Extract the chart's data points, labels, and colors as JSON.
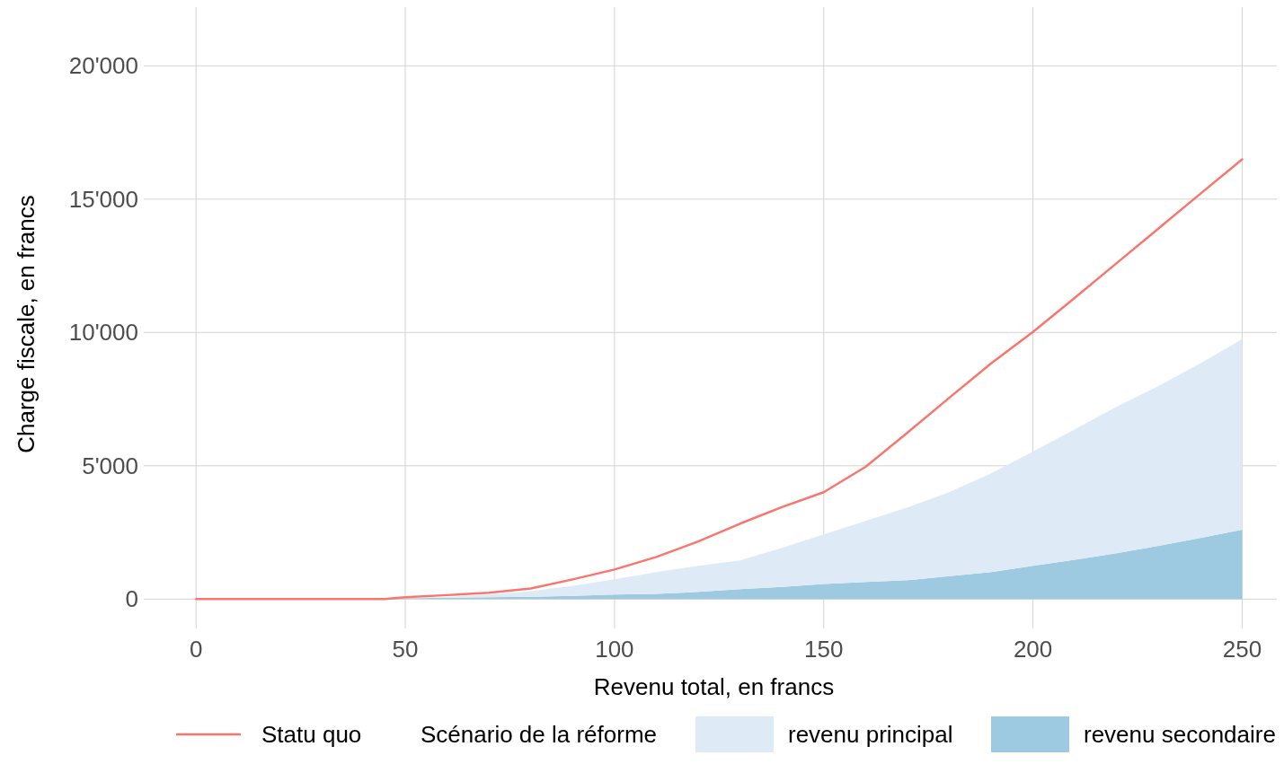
{
  "chart_data": {
    "type": "area",
    "xlabel": "Revenu total, en francs",
    "ylabel": "Charge fiscale, en francs",
    "legend_title": "Scénario de la réforme",
    "stacked": true,
    "grid": true,
    "legend": "bottom",
    "x": [
      0,
      45,
      50,
      60,
      70,
      80,
      90,
      100,
      110,
      120,
      130,
      140,
      150,
      160,
      170,
      180,
      190,
      200,
      210,
      220,
      230,
      240,
      250
    ],
    "series": [
      {
        "name": "Statu quo",
        "type": "line",
        "color": "#f8766d",
        "values": [
          0,
          0,
          70,
          150,
          240,
          400,
          740,
          1110,
          1580,
          2160,
          2830,
          3450,
          4010,
          4960,
          6240,
          7550,
          8840,
          10020,
          11300,
          12600,
          13900,
          15200,
          16490
        ]
      },
      {
        "name": "revenu secondaire",
        "type": "area",
        "color": "#9ecae1",
        "values": [
          0,
          0,
          30,
          50,
          70,
          90,
          120,
          170,
          200,
          270,
          370,
          460,
          570,
          640,
          710,
          860,
          1010,
          1250,
          1480,
          1720,
          2000,
          2290,
          2600
        ]
      },
      {
        "name": "revenu principal",
        "type": "area",
        "color": "#deebf7",
        "values": [
          0,
          0,
          0,
          30,
          100,
          210,
          380,
          570,
          810,
          980,
          1080,
          1460,
          1860,
          2290,
          2730,
          3150,
          3710,
          4280,
          4890,
          5500,
          5990,
          6550,
          7150
        ]
      }
    ],
    "xlim": [
      -12.5,
      260
    ],
    "xticks": [
      0,
      50,
      100,
      150,
      200,
      250
    ],
    "ylim": [
      -1100,
      22200
    ],
    "yticks": [
      0,
      {
        "value": 5000,
        "label": "5'000"
      },
      {
        "value": 10000,
        "label": "10'000"
      },
      {
        "value": 15000,
        "label": "15'000"
      },
      {
        "value": 20000,
        "label": "20'000"
      }
    ]
  }
}
